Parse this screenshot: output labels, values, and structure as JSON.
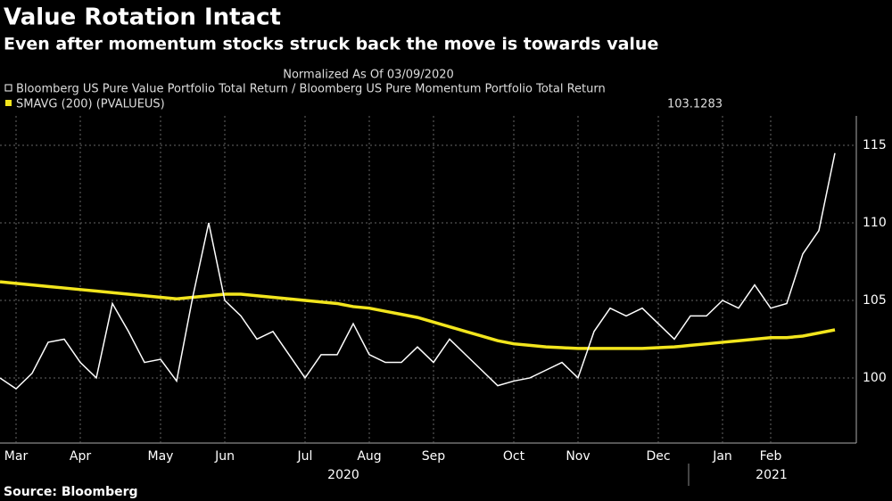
{
  "chart_data": {
    "type": "line",
    "title": "Value Rotation Intact",
    "subtitle": "Even after momentum stocks struck back the move is towards value",
    "note": "Normalized As Of 03/09/2020",
    "source": "Source: Bloomberg",
    "years": [
      "2020",
      "2021"
    ],
    "categories": [
      null,
      "Mar",
      null,
      null,
      null,
      "Apr",
      null,
      null,
      null,
      null,
      "May",
      null,
      null,
      null,
      "Jun",
      null,
      null,
      null,
      null,
      "Jul",
      null,
      null,
      null,
      "Aug",
      null,
      null,
      null,
      "Sep",
      null,
      null,
      null,
      null,
      "Oct",
      null,
      null,
      null,
      "Nov",
      null,
      null,
      null,
      null,
      "Dec",
      null,
      null,
      null,
      "Jan",
      null,
      null,
      "Feb",
      null,
      null,
      null,
      null
    ],
    "series": [
      {
        "name": "Bloomberg US Pure Value Portfolio Total Return / Bloomberg US Pure Momentum Portfolio Total Return",
        "color": "#ffffff",
        "values": [
          100.0,
          99.3,
          100.3,
          102.3,
          102.5,
          101.0,
          100.0,
          104.8,
          103.0,
          101.0,
          101.2,
          99.8,
          105.2,
          110.0,
          105.0,
          104.0,
          102.5,
          103.0,
          101.5,
          100.0,
          101.5,
          101.5,
          103.5,
          101.5,
          101.0,
          101.0,
          102.0,
          101.0,
          102.5,
          101.5,
          100.5,
          99.5,
          99.8,
          100.0,
          100.5,
          101.0,
          100.0,
          103.0,
          104.5,
          104.0,
          104.5,
          103.5,
          102.5,
          104.0,
          104.0,
          105.0,
          104.5,
          106.0,
          104.5,
          104.8,
          108.0,
          109.5,
          114.5
        ]
      },
      {
        "name": "SMAVG (200) (PVALUEUS)",
        "color": "#f2e51d",
        "latest": "103.1283",
        "values": [
          106.2,
          106.1,
          106.0,
          105.9,
          105.8,
          105.7,
          105.6,
          105.5,
          105.4,
          105.3,
          105.2,
          105.1,
          105.2,
          105.3,
          105.4,
          105.4,
          105.3,
          105.2,
          105.1,
          105.0,
          104.9,
          104.8,
          104.6,
          104.5,
          104.3,
          104.1,
          103.9,
          103.6,
          103.3,
          103.0,
          102.7,
          102.4,
          102.2,
          102.1,
          102.0,
          101.95,
          101.9,
          101.9,
          101.9,
          101.9,
          101.9,
          101.95,
          102.0,
          102.1,
          102.2,
          102.3,
          102.4,
          102.5,
          102.6,
          102.6,
          102.7,
          102.9,
          103.1
        ]
      }
    ],
    "ylim": [
      95.8,
      116.9
    ],
    "yticks": [
      100,
      105,
      110,
      115
    ],
    "grid": true
  }
}
